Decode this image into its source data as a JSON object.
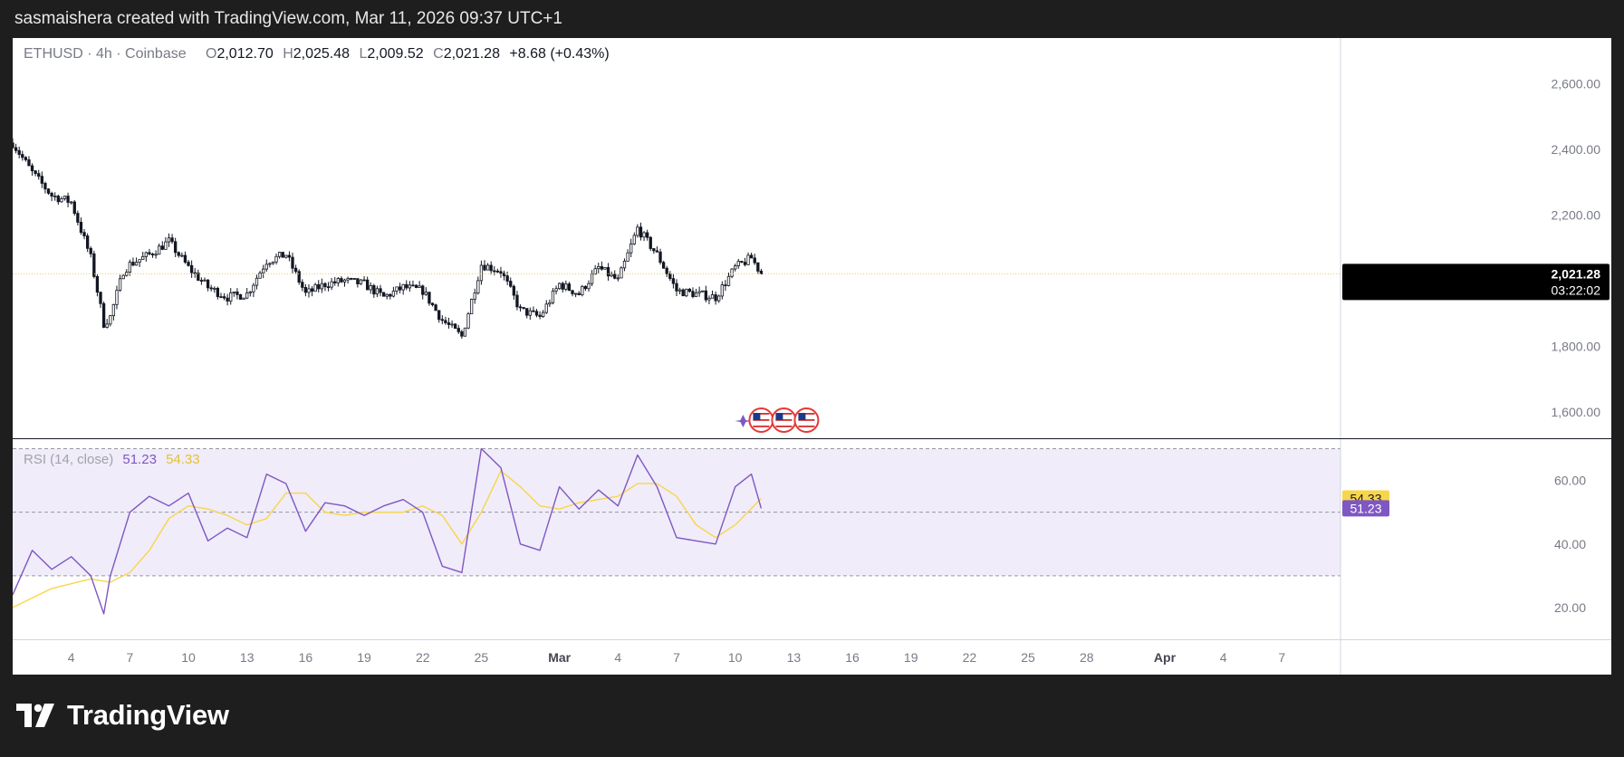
{
  "header": {
    "caption": "sasmaishera created with TradingView.com, Mar 11, 2026 09:37 UTC+1"
  },
  "brand": {
    "name": "TradingView"
  },
  "chart_data": [
    {
      "type": "candlestick",
      "symbol": "ETHUSD",
      "interval": "4h",
      "exchange": "Coinbase",
      "legend": {
        "symbol_line": "ETHUSD · 4h · Coinbase",
        "o_label": "O",
        "o": "2,012.70",
        "h_label": "H",
        "h": "2,025.48",
        "l_label": "L",
        "l": "2,009.52",
        "c_label": "C",
        "c": "2,021.28",
        "change": "+8.68 (+0.43%)"
      },
      "ylim": [
        1520,
        2740
      ],
      "yticks": [
        {
          "value": 2600,
          "label": "2,600.00"
        },
        {
          "value": 2400,
          "label": "2,400.00"
        },
        {
          "value": 2200,
          "label": "2,200.00"
        },
        {
          "value": 1800,
          "label": "1,800.00"
        },
        {
          "value": 1600,
          "label": "1,600.00"
        }
      ],
      "last_price": {
        "value": 2021.28,
        "label": "2,021.28",
        "countdown": "03:22:02"
      },
      "close_path": [
        [
          "2026-02-01",
          2420
        ],
        [
          "2026-02-02",
          2330
        ],
        [
          "2026-02-03",
          2260
        ],
        [
          "2026-02-04",
          2240
        ],
        [
          "2026-02-05",
          2070
        ],
        [
          "2026-02-05T16",
          1870
        ],
        [
          "2026-02-06",
          1890
        ],
        [
          "2026-02-06T16",
          2030
        ],
        [
          "2026-02-07",
          2050
        ],
        [
          "2026-02-08",
          2080
        ],
        [
          "2026-02-09",
          2120
        ],
        [
          "2026-02-10",
          2040
        ],
        [
          "2026-02-11",
          1980
        ],
        [
          "2026-02-12",
          1950
        ],
        [
          "2026-02-13",
          1960
        ],
        [
          "2026-02-14",
          2060
        ],
        [
          "2026-02-15",
          2080
        ],
        [
          "2026-02-16",
          1960
        ],
        [
          "2026-02-17",
          1990
        ],
        [
          "2026-02-18",
          2000
        ],
        [
          "2026-02-19",
          1990
        ],
        [
          "2026-02-20",
          1950
        ],
        [
          "2026-02-21",
          1980
        ],
        [
          "2026-02-22",
          1970
        ],
        [
          "2026-02-23",
          1880
        ],
        [
          "2026-02-24",
          1830
        ],
        [
          "2026-02-25",
          2050
        ],
        [
          "2026-02-26",
          2030
        ],
        [
          "2026-02-27",
          1910
        ],
        [
          "2026-02-28",
          1890
        ],
        [
          "2026-03-01",
          1990
        ],
        [
          "2026-03-02",
          1960
        ],
        [
          "2026-03-03",
          2040
        ],
        [
          "2026-03-04",
          2000
        ],
        [
          "2026-03-05",
          2160
        ],
        [
          "2026-03-06",
          2080
        ],
        [
          "2026-03-07",
          1970
        ],
        [
          "2026-03-08",
          1960
        ],
        [
          "2026-03-09",
          1950
        ],
        [
          "2026-03-10",
          2040
        ],
        [
          "2026-03-10T20",
          2070
        ],
        [
          "2026-03-11T08",
          2021.28
        ]
      ],
      "event_flags": [
        "us-flag-icon",
        "us-flag-icon",
        "us-flag-icon"
      ]
    },
    {
      "type": "line",
      "indicator": "RSI",
      "legend": {
        "name": "RSI (14, close)",
        "rsi": "51.23",
        "ma": "54.33"
      },
      "ylim": [
        10,
        73
      ],
      "yticks": [
        {
          "value": 60,
          "label": "60.00"
        },
        {
          "value": 40,
          "label": "40.00"
        },
        {
          "value": 20,
          "label": "20.00"
        }
      ],
      "bands": {
        "upper": 70,
        "middle": 50,
        "lower": 30
      },
      "last_rsi": {
        "value": 51.23,
        "label": "51.23"
      },
      "last_ma": {
        "value": 54.33,
        "label": "54.33"
      },
      "rsi_path": [
        [
          "2026-02-01",
          24
        ],
        [
          "2026-02-02",
          38
        ],
        [
          "2026-02-03",
          32
        ],
        [
          "2026-02-04",
          36
        ],
        [
          "2026-02-05",
          30
        ],
        [
          "2026-02-05T16",
          18
        ],
        [
          "2026-02-06",
          30
        ],
        [
          "2026-02-07",
          50
        ],
        [
          "2026-02-08",
          55
        ],
        [
          "2026-02-09",
          52
        ],
        [
          "2026-02-10",
          56
        ],
        [
          "2026-02-11",
          41
        ],
        [
          "2026-02-12",
          45
        ],
        [
          "2026-02-13",
          42
        ],
        [
          "2026-02-14",
          62
        ],
        [
          "2026-02-15",
          59
        ],
        [
          "2026-02-16",
          44
        ],
        [
          "2026-02-17",
          53
        ],
        [
          "2026-02-18",
          52
        ],
        [
          "2026-02-19",
          49
        ],
        [
          "2026-02-20",
          52
        ],
        [
          "2026-02-21",
          54
        ],
        [
          "2026-02-22",
          50
        ],
        [
          "2026-02-23",
          33
        ],
        [
          "2026-02-24",
          31
        ],
        [
          "2026-02-25",
          70
        ],
        [
          "2026-02-26",
          64
        ],
        [
          "2026-02-27",
          40
        ],
        [
          "2026-02-28",
          38
        ],
        [
          "2026-03-01",
          58
        ],
        [
          "2026-03-02",
          51
        ],
        [
          "2026-03-03",
          57
        ],
        [
          "2026-03-04",
          52
        ],
        [
          "2026-03-05",
          68
        ],
        [
          "2026-03-06",
          58
        ],
        [
          "2026-03-07",
          42
        ],
        [
          "2026-03-08",
          41
        ],
        [
          "2026-03-09",
          40
        ],
        [
          "2026-03-10",
          58
        ],
        [
          "2026-03-10T20",
          62
        ],
        [
          "2026-03-11T08",
          51.23
        ]
      ],
      "ma_path": [
        [
          "2026-02-01",
          20
        ],
        [
          "2026-02-03",
          26
        ],
        [
          "2026-02-05",
          29
        ],
        [
          "2026-02-06",
          28
        ],
        [
          "2026-02-07",
          31
        ],
        [
          "2026-02-08",
          38
        ],
        [
          "2026-02-09",
          48
        ],
        [
          "2026-02-10",
          52
        ],
        [
          "2026-02-11",
          51
        ],
        [
          "2026-02-12",
          49
        ],
        [
          "2026-02-13",
          46
        ],
        [
          "2026-02-14",
          48
        ],
        [
          "2026-02-15",
          56
        ],
        [
          "2026-02-16",
          56
        ],
        [
          "2026-02-17",
          50
        ],
        [
          "2026-02-18",
          49
        ],
        [
          "2026-02-19",
          50
        ],
        [
          "2026-02-20",
          50
        ],
        [
          "2026-02-21",
          50
        ],
        [
          "2026-02-22",
          52
        ],
        [
          "2026-02-23",
          49
        ],
        [
          "2026-02-24",
          40
        ],
        [
          "2026-02-25",
          50
        ],
        [
          "2026-02-26",
          63
        ],
        [
          "2026-02-27",
          58
        ],
        [
          "2026-02-28",
          52
        ],
        [
          "2026-03-01",
          51
        ],
        [
          "2026-03-02",
          53
        ],
        [
          "2026-03-03",
          54
        ],
        [
          "2026-03-04",
          55
        ],
        [
          "2026-03-05",
          59
        ],
        [
          "2026-03-06",
          59
        ],
        [
          "2026-03-07",
          55
        ],
        [
          "2026-03-08",
          46
        ],
        [
          "2026-03-09",
          42
        ],
        [
          "2026-03-10",
          46
        ],
        [
          "2026-03-11T08",
          54.33
        ]
      ]
    }
  ],
  "x_axis": {
    "range": [
      "2026-02-01",
      "2026-04-10"
    ],
    "ticks": [
      {
        "date": "2026-02-04",
        "label": "4",
        "bold": false
      },
      {
        "date": "2026-02-07",
        "label": "7",
        "bold": false
      },
      {
        "date": "2026-02-10",
        "label": "10",
        "bold": false
      },
      {
        "date": "2026-02-13",
        "label": "13",
        "bold": false
      },
      {
        "date": "2026-02-16",
        "label": "16",
        "bold": false
      },
      {
        "date": "2026-02-19",
        "label": "19",
        "bold": false
      },
      {
        "date": "2026-02-22",
        "label": "22",
        "bold": false
      },
      {
        "date": "2026-02-25",
        "label": "25",
        "bold": false
      },
      {
        "date": "2026-03-01",
        "label": "Mar",
        "bold": true
      },
      {
        "date": "2026-03-04",
        "label": "4",
        "bold": false
      },
      {
        "date": "2026-03-07",
        "label": "7",
        "bold": false
      },
      {
        "date": "2026-03-10",
        "label": "10",
        "bold": false
      },
      {
        "date": "2026-03-13",
        "label": "13",
        "bold": false
      },
      {
        "date": "2026-03-16",
        "label": "16",
        "bold": false
      },
      {
        "date": "2026-03-19",
        "label": "19",
        "bold": false
      },
      {
        "date": "2026-03-22",
        "label": "22",
        "bold": false
      },
      {
        "date": "2026-03-25",
        "label": "25",
        "bold": false
      },
      {
        "date": "2026-03-28",
        "label": "28",
        "bold": false
      },
      {
        "date": "2026-04-01",
        "label": "Apr",
        "bold": true
      },
      {
        "date": "2026-04-04",
        "label": "4",
        "bold": false
      },
      {
        "date": "2026-04-07",
        "label": "7",
        "bold": false
      }
    ]
  },
  "colors": {
    "candle": "#131722",
    "rsi_line": "#7e57c2",
    "rsi_ma": "#f7d64a",
    "rsi_band_fill": "#f0ecf9",
    "last_price_bg": "#000000",
    "rsi_label_bg": "#7e57c2",
    "ma_label_bg": "#f7d64a",
    "axis_text": "#787b86",
    "grid_line": "#9598a1",
    "price_line": "#f7c948",
    "background": "#1e1e1e"
  }
}
